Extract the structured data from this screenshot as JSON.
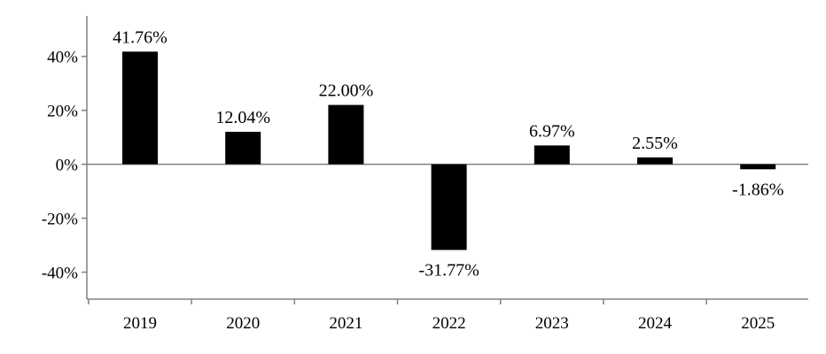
{
  "chart_data": {
    "type": "bar",
    "categories": [
      "2019",
      "2020",
      "2021",
      "2022",
      "2023",
      "2024",
      "2025"
    ],
    "values": [
      41.76,
      12.04,
      22.0,
      -31.77,
      6.97,
      2.55,
      -1.86
    ],
    "data_labels": [
      "41.76%",
      "12.04%",
      "22.00%",
      "-31.77%",
      "6.97%",
      "2.55%",
      "-1.86%"
    ],
    "title": "",
    "xlabel": "",
    "ylabel": "",
    "ylim": [
      -50,
      55
    ],
    "yticks": [
      40,
      20,
      0,
      -20,
      -40
    ],
    "ytick_labels": [
      "40%",
      "20%",
      "0%",
      "-20%",
      "-40%"
    ],
    "grid": false,
    "legend": "none",
    "bar_color": "#000000",
    "axis_color": "#808080"
  }
}
